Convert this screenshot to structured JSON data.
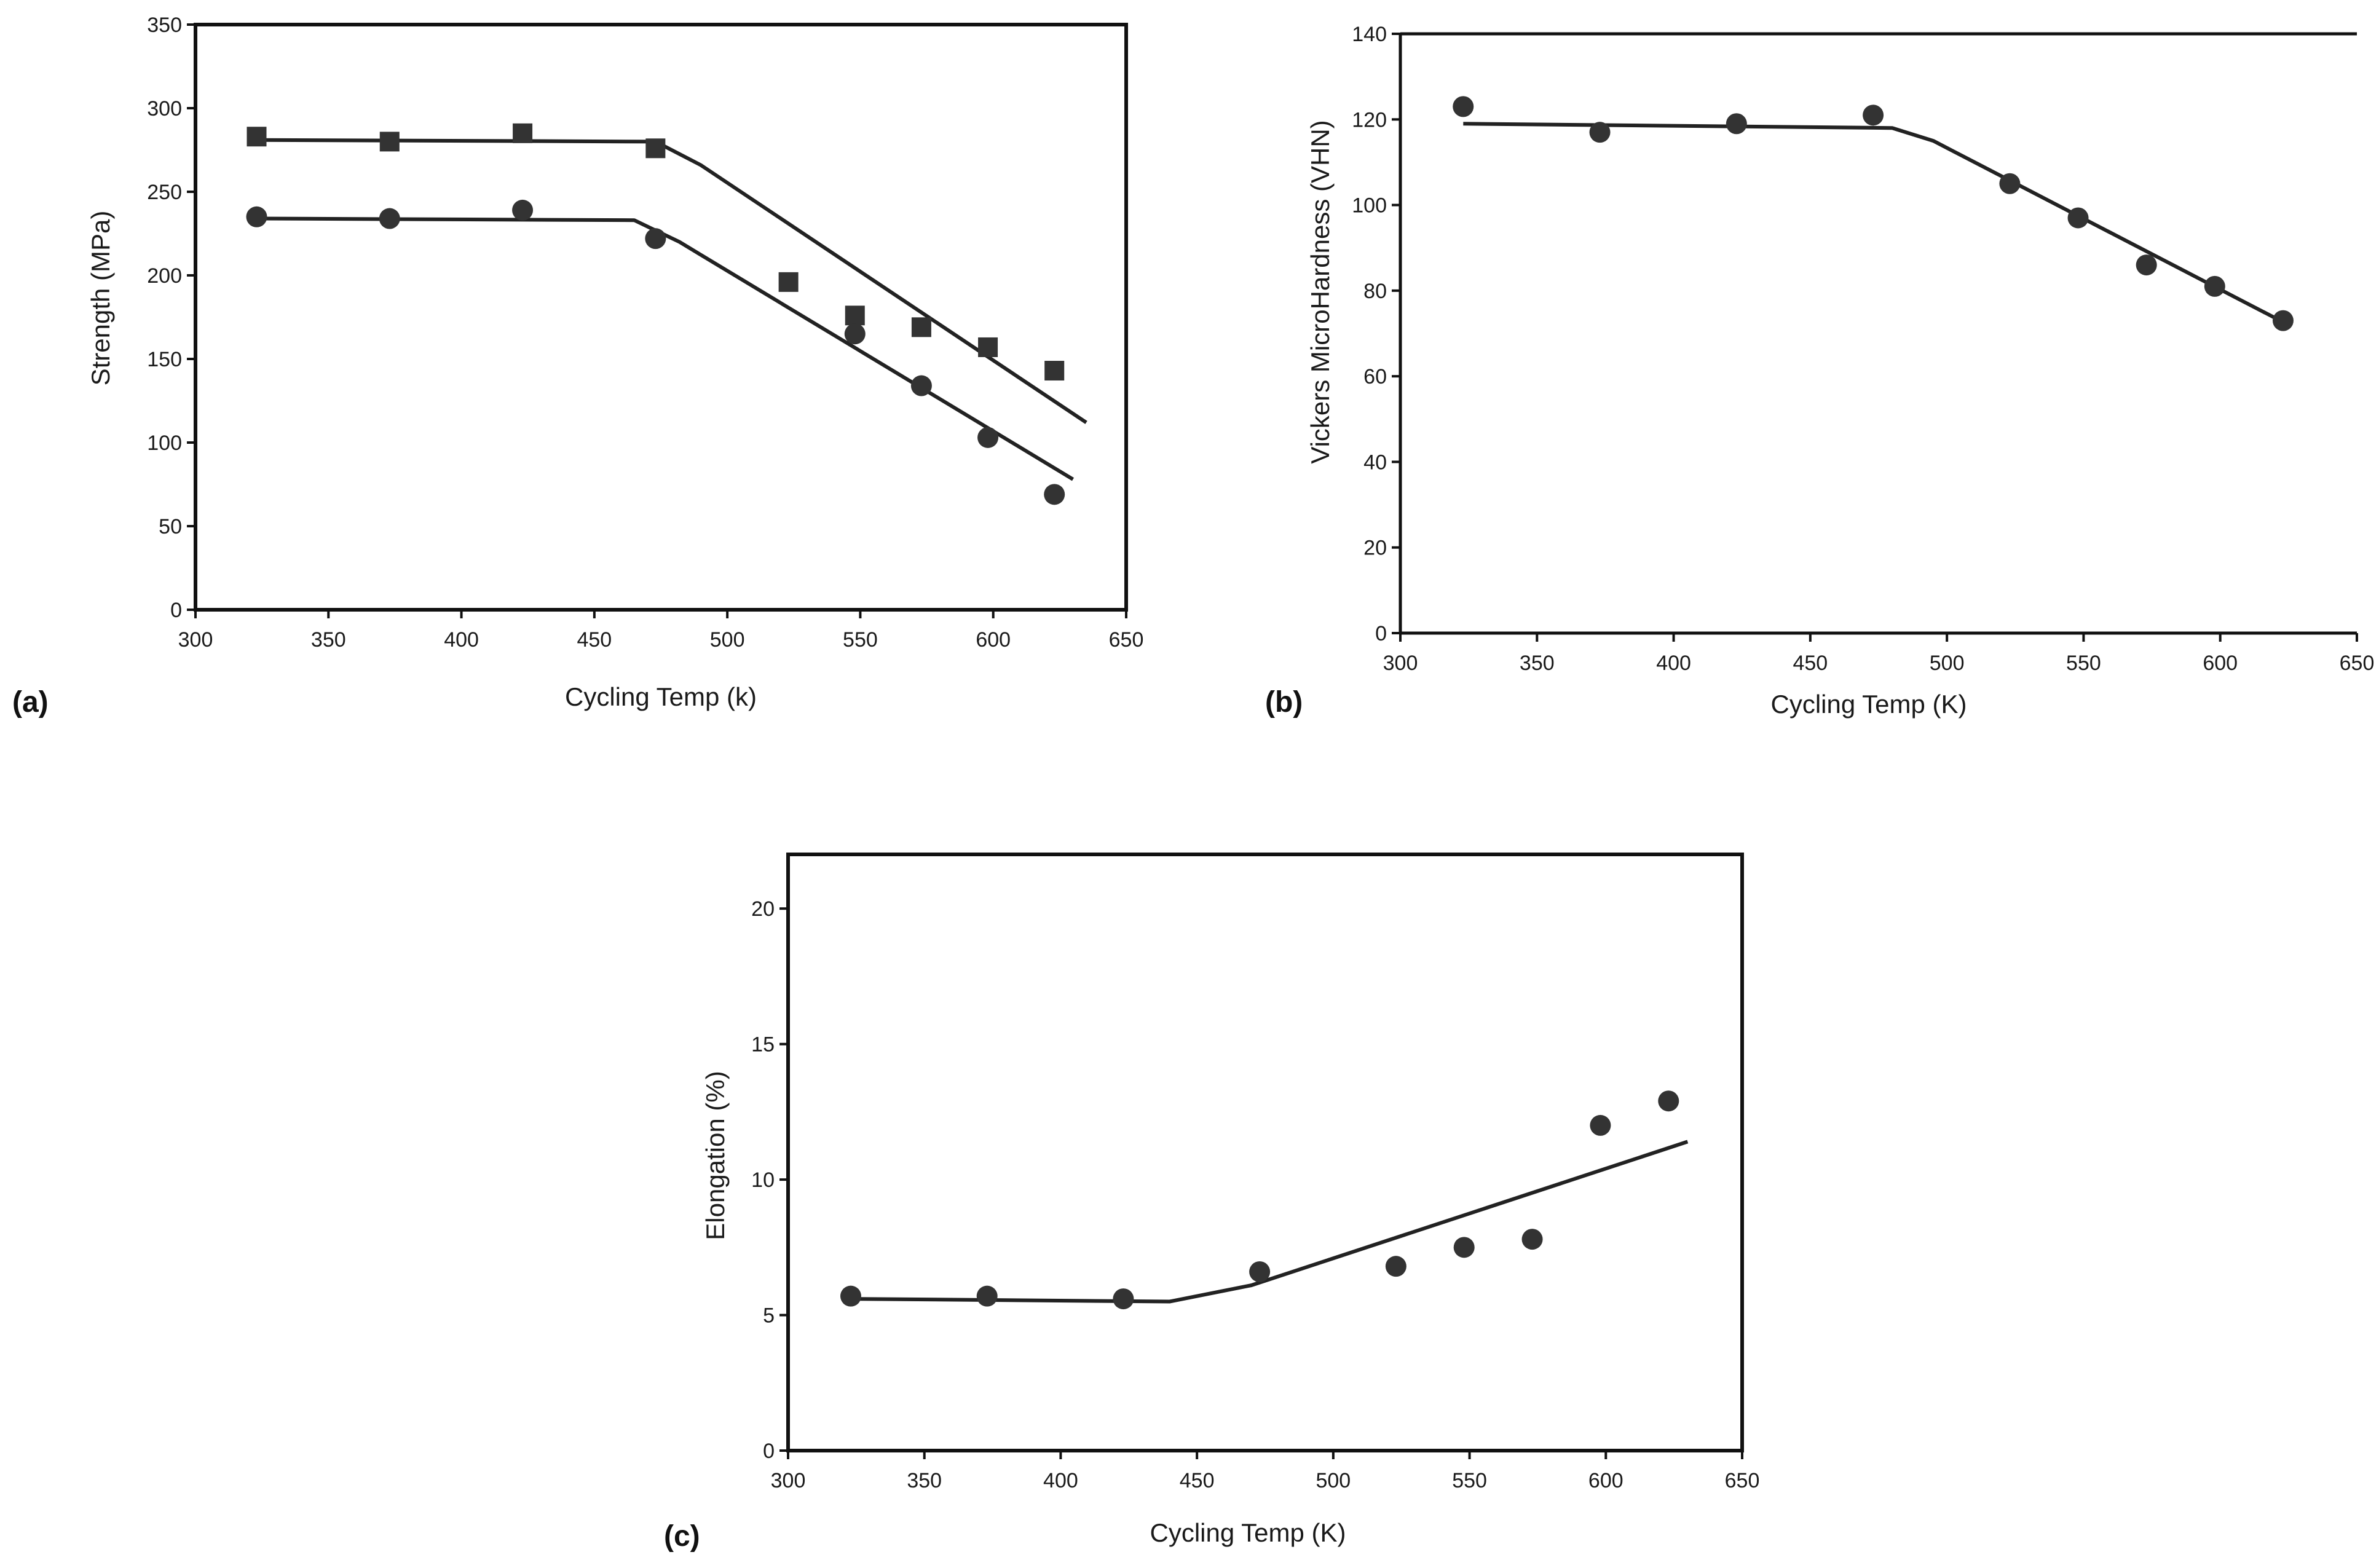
{
  "chart_data": [
    {
      "id": "a",
      "panel_label": "(a)",
      "type": "scatter",
      "xlabel": "Cycling Temp (k)",
      "ylabel": "Strength (MPa)",
      "xlim": [
        300,
        650
      ],
      "ylim": [
        0,
        350
      ],
      "xticks": [
        300,
        350,
        400,
        450,
        500,
        550,
        600,
        650
      ],
      "yticks": [
        0,
        50,
        100,
        150,
        200,
        250,
        300,
        350
      ],
      "frame": "full-box",
      "series": [
        {
          "name": "square-series",
          "marker": "square",
          "points": [
            [
              323,
              283
            ],
            [
              373,
              280
            ],
            [
              423,
              285
            ],
            [
              473,
              276
            ],
            [
              523,
              196
            ],
            [
              548,
              176
            ],
            [
              573,
              169
            ],
            [
              598,
              157
            ],
            [
              623,
              143
            ]
          ],
          "fit": [
            [
              323,
              281
            ],
            [
              473,
              280
            ],
            [
              490,
              266
            ],
            [
              635,
              112
            ]
          ]
        },
        {
          "name": "circle-series",
          "marker": "circle",
          "points": [
            [
              323,
              235
            ],
            [
              373,
              234
            ],
            [
              423,
              239
            ],
            [
              473,
              222
            ],
            [
              548,
              165
            ],
            [
              573,
              134
            ],
            [
              598,
              103
            ],
            [
              623,
              69
            ]
          ],
          "fit": [
            [
              323,
              234
            ],
            [
              465,
              233
            ],
            [
              482,
              220
            ],
            [
              630,
              78
            ]
          ]
        }
      ]
    },
    {
      "id": "b",
      "panel_label": "(b)",
      "type": "scatter",
      "xlabel": "Cycling Temp (K)",
      "ylabel": "Vickers MicroHardness (VHN)",
      "xlim": [
        300,
        650
      ],
      "ylim": [
        0,
        140
      ],
      "xticks": [
        300,
        350,
        400,
        450,
        500,
        550,
        600,
        650
      ],
      "yticks": [
        0,
        20,
        40,
        60,
        80,
        100,
        120,
        140
      ],
      "frame": "left-bottom-top",
      "series": [
        {
          "name": "hardness",
          "marker": "circle",
          "points": [
            [
              323,
              123
            ],
            [
              373,
              117
            ],
            [
              423,
              119
            ],
            [
              473,
              121
            ],
            [
              523,
              105
            ],
            [
              548,
              97
            ],
            [
              573,
              86
            ],
            [
              598,
              81
            ],
            [
              623,
              73
            ]
          ],
          "fit": [
            [
              323,
              119
            ],
            [
              480,
              118
            ],
            [
              495,
              115
            ],
            [
              625,
              72
            ]
          ]
        }
      ]
    },
    {
      "id": "c",
      "panel_label": "(c)",
      "type": "scatter",
      "xlabel": "Cycling Temp (K)",
      "ylabel": "Elongation (%)",
      "xlim": [
        300,
        650
      ],
      "ylim": [
        0,
        22
      ],
      "xticks": [
        300,
        350,
        400,
        450,
        500,
        550,
        600,
        650
      ],
      "yticks": [
        0,
        5,
        10,
        15,
        20
      ],
      "frame": "full-box",
      "series": [
        {
          "name": "elongation",
          "marker": "circle",
          "points": [
            [
              323,
              5.7
            ],
            [
              373,
              5.7
            ],
            [
              423,
              5.6
            ],
            [
              473,
              6.6
            ],
            [
              523,
              6.8
            ],
            [
              548,
              7.5
            ],
            [
              573,
              7.8
            ],
            [
              598,
              12.0
            ],
            [
              623,
              12.9
            ]
          ],
          "fit": [
            [
              323,
              5.6
            ],
            [
              440,
              5.5
            ],
            [
              470,
              6.1
            ],
            [
              630,
              11.4
            ]
          ]
        }
      ]
    }
  ]
}
